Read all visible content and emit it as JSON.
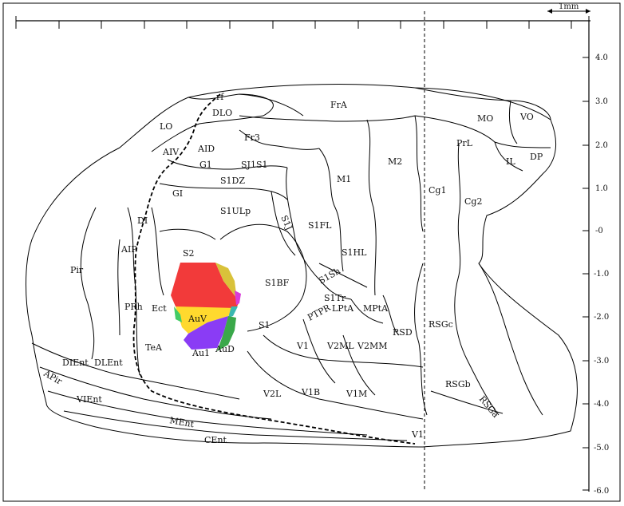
{
  "scale_bar": {
    "label": "1mm"
  },
  "axis_ticks": [
    "4.0",
    "3.0",
    "2.0",
    "1.0",
    "-0",
    "-1.0",
    "-2.0",
    "-3.0",
    "-4.0",
    "-5.0",
    "-6.0"
  ],
  "regions": {
    "rf": "rf",
    "DLO": "DLO",
    "FrA": "FrA",
    "MO": "MO",
    "VO": "VO",
    "LO": "LO",
    "AIV": "AIV",
    "AID": "AID",
    "Fr3": "Fr3",
    "PrL": "PrL",
    "IL": "IL",
    "DP": "DP",
    "SJ1S1": "SJ1S1",
    "M2": "M2",
    "G1": "G1",
    "S1DZ": "S1DZ",
    "M1": "M1",
    "Cg1": "Cg1",
    "Cg2": "Cg2",
    "GI": "GI",
    "S1ULp": "S1ULp",
    "DI": "DI",
    "S1J": "S1J",
    "S1FL": "S1FL",
    "AIP": "AIP",
    "S2": "S2",
    "S1HL": "S1HL",
    "Pir": "Pir",
    "S1Sh": "S1Sh",
    "S1BF": "S1BF",
    "S1Tr": "S1Tr",
    "PRh": "PRh",
    "Ect": "Ect",
    "AuV": "AuV",
    "LPtA": "LPtA",
    "MPtA": "MPtA",
    "PTPR": "PTPR",
    "RSD": "RSD",
    "RSGc": "RSGc",
    "S1": "S1",
    "TeA": "TeA",
    "Au1": "Au1",
    "AuD": "AuD",
    "V1": "V1",
    "V2ML": "V2ML",
    "V2MM": "V2MM",
    "DIEnt": "DIEnt",
    "DLEnt": "DLEnt",
    "APir": "APir",
    "V2L": "V2L",
    "V1B": "V1B",
    "V1M": "V1M",
    "RSGb": "RSGb",
    "RSGa": "RSGa",
    "VIEnt": "VIEnt",
    "MEnt": "MEnt",
    "CEnt": "CEnt",
    "V1_lower": "V1"
  },
  "highlight_colors": {
    "red": "#f23a3a",
    "olive": "#d9c23a",
    "magenta": "#d93ad9",
    "yellow": "#ffd92e",
    "teal": "#3ab8b0",
    "green_light": "#44cc66",
    "purple": "#8a3cf5",
    "green_dark": "#3aa84a"
  }
}
